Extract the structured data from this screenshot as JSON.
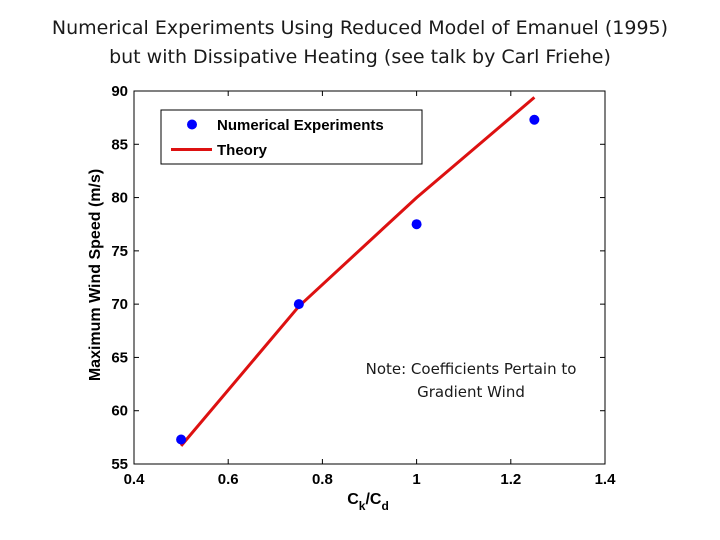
{
  "slide": {
    "title_line1": "Numerical Experiments Using Reduced Model of Emanuel (1995)",
    "title_line2": "but with Dissipative Heating (see talk by Carl Friehe)",
    "note_line1": "Note: Coefficients Pertain to",
    "note_line2": "Gradient Wind"
  },
  "chart_data": {
    "type": "line",
    "title": "",
    "xlabel_main": "C",
    "xlabel_sub1": "k",
    "xlabel_mid": "/C",
    "xlabel_sub2": "d",
    "ylabel": "Maximum Wind Speed (m/s)",
    "xlim": [
      0.4,
      1.4
    ],
    "ylim": [
      55,
      90
    ],
    "xticks": [
      "0.4",
      "0.6",
      "0.8",
      "1",
      "1.2",
      "1.4"
    ],
    "yticks": [
      "55",
      "60",
      "65",
      "70",
      "75",
      "80",
      "85",
      "90"
    ],
    "grid": false,
    "legend_position": "top-left",
    "series": [
      {
        "name": "Numerical Experiments",
        "kind": "scatter",
        "color": "#0000ff",
        "x": [
          0.5,
          0.75,
          1.0,
          1.25
        ],
        "y": [
          57.3,
          70.0,
          77.5,
          87.3
        ]
      },
      {
        "name": "Theory",
        "kind": "line",
        "color": "#dd1111",
        "x": [
          0.5,
          0.75,
          1.0,
          1.25
        ],
        "y": [
          56.7,
          69.8,
          80.0,
          89.4
        ]
      }
    ]
  }
}
